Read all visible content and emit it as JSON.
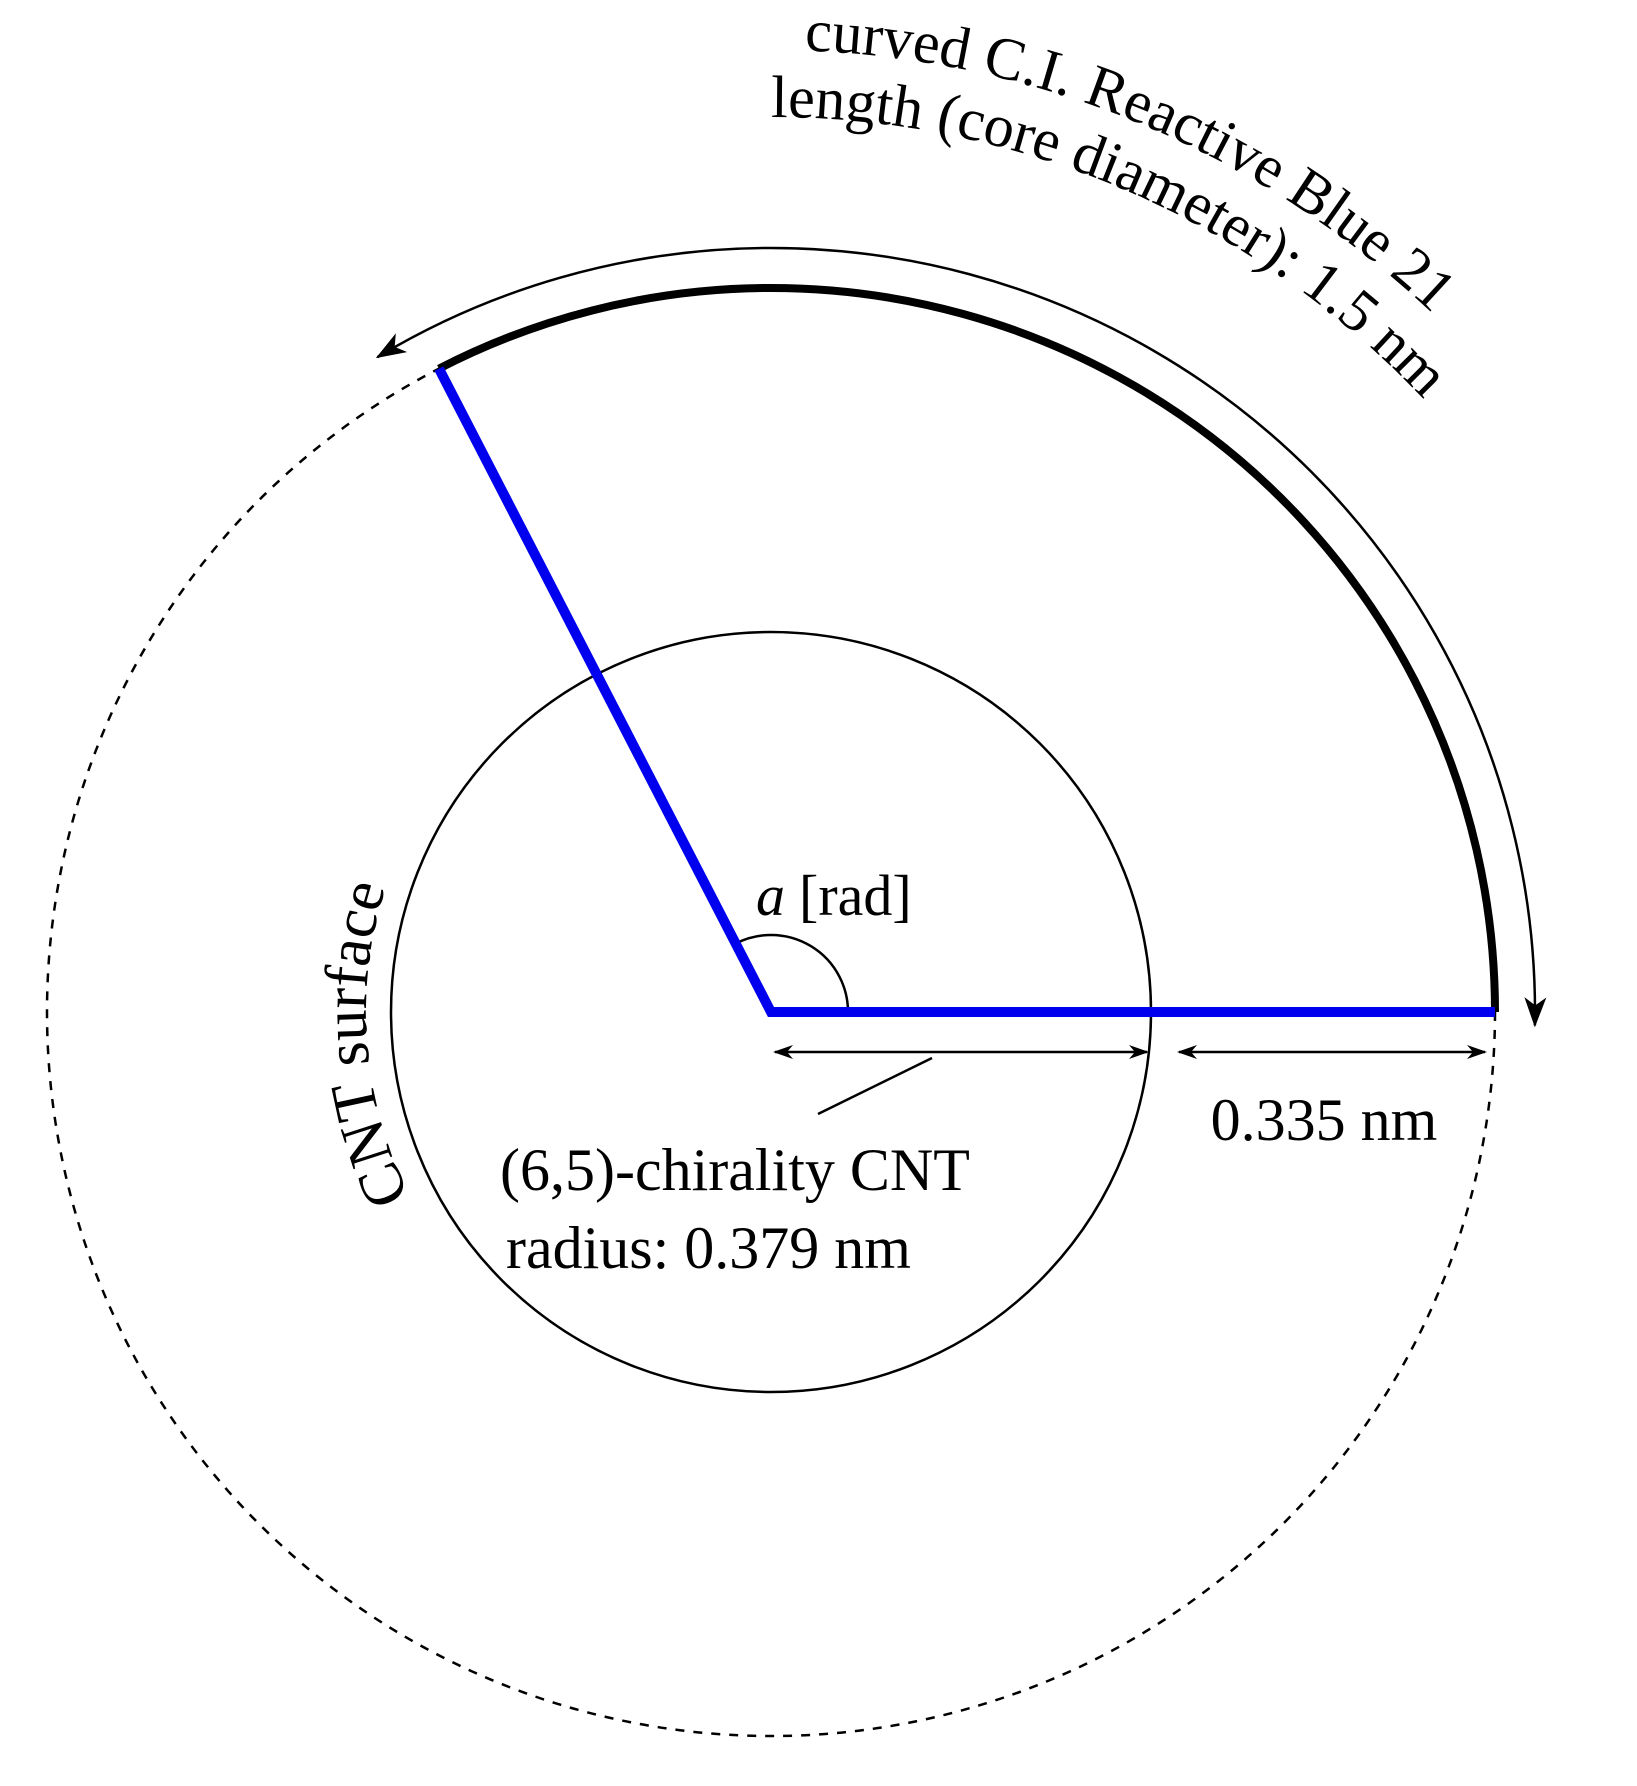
{
  "labels": {
    "arc_line1": "curved C.I. Reactive Blue 21",
    "arc_line2": "length (core diameter): 1.5 nm",
    "surface": "CNT surface",
    "angle_symbol": "a",
    "angle_unit": "[rad]",
    "gap": "0.335 nm",
    "cnt_line1": "(6,5)-chirality CNT",
    "cnt_line2": "radius: 0.379 nm"
  }
}
